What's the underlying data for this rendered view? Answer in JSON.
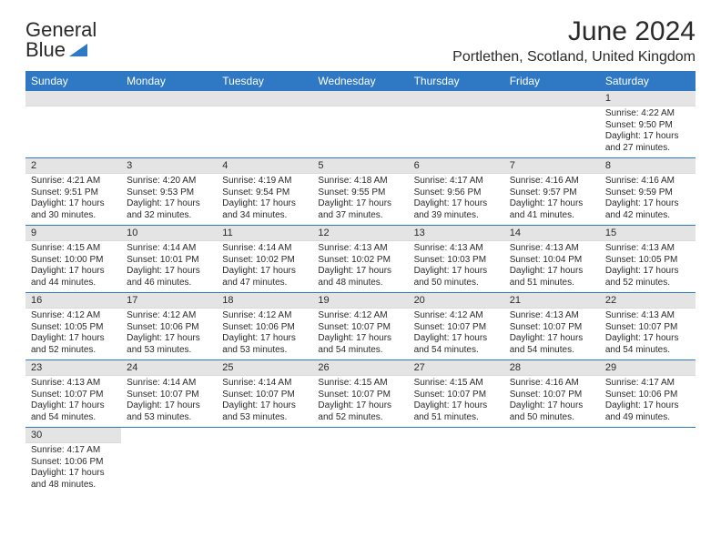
{
  "brand": {
    "name_line1": "General",
    "name_line2": "Blue",
    "triangle_color": "#2f78c4"
  },
  "header": {
    "title": "June 2024",
    "location": "Portlethen, Scotland, United Kingdom"
  },
  "colors": {
    "header_bg": "#2f78c4",
    "header_fg": "#ffffff",
    "daynum_bg": "#e4e4e4",
    "row_divider": "#2f78c4",
    "text": "#2a2a2a"
  },
  "day_headers": [
    "Sunday",
    "Monday",
    "Tuesday",
    "Wednesday",
    "Thursday",
    "Friday",
    "Saturday"
  ],
  "weeks": [
    [
      null,
      null,
      null,
      null,
      null,
      null,
      {
        "n": "1",
        "sunrise": "Sunrise: 4:22 AM",
        "sunset": "Sunset: 9:50 PM",
        "daylight1": "Daylight: 17 hours",
        "daylight2": "and 27 minutes."
      }
    ],
    [
      {
        "n": "2",
        "sunrise": "Sunrise: 4:21 AM",
        "sunset": "Sunset: 9:51 PM",
        "daylight1": "Daylight: 17 hours",
        "daylight2": "and 30 minutes."
      },
      {
        "n": "3",
        "sunrise": "Sunrise: 4:20 AM",
        "sunset": "Sunset: 9:53 PM",
        "daylight1": "Daylight: 17 hours",
        "daylight2": "and 32 minutes."
      },
      {
        "n": "4",
        "sunrise": "Sunrise: 4:19 AM",
        "sunset": "Sunset: 9:54 PM",
        "daylight1": "Daylight: 17 hours",
        "daylight2": "and 34 minutes."
      },
      {
        "n": "5",
        "sunrise": "Sunrise: 4:18 AM",
        "sunset": "Sunset: 9:55 PM",
        "daylight1": "Daylight: 17 hours",
        "daylight2": "and 37 minutes."
      },
      {
        "n": "6",
        "sunrise": "Sunrise: 4:17 AM",
        "sunset": "Sunset: 9:56 PM",
        "daylight1": "Daylight: 17 hours",
        "daylight2": "and 39 minutes."
      },
      {
        "n": "7",
        "sunrise": "Sunrise: 4:16 AM",
        "sunset": "Sunset: 9:57 PM",
        "daylight1": "Daylight: 17 hours",
        "daylight2": "and 41 minutes."
      },
      {
        "n": "8",
        "sunrise": "Sunrise: 4:16 AM",
        "sunset": "Sunset: 9:59 PM",
        "daylight1": "Daylight: 17 hours",
        "daylight2": "and 42 minutes."
      }
    ],
    [
      {
        "n": "9",
        "sunrise": "Sunrise: 4:15 AM",
        "sunset": "Sunset: 10:00 PM",
        "daylight1": "Daylight: 17 hours",
        "daylight2": "and 44 minutes."
      },
      {
        "n": "10",
        "sunrise": "Sunrise: 4:14 AM",
        "sunset": "Sunset: 10:01 PM",
        "daylight1": "Daylight: 17 hours",
        "daylight2": "and 46 minutes."
      },
      {
        "n": "11",
        "sunrise": "Sunrise: 4:14 AM",
        "sunset": "Sunset: 10:02 PM",
        "daylight1": "Daylight: 17 hours",
        "daylight2": "and 47 minutes."
      },
      {
        "n": "12",
        "sunrise": "Sunrise: 4:13 AM",
        "sunset": "Sunset: 10:02 PM",
        "daylight1": "Daylight: 17 hours",
        "daylight2": "and 48 minutes."
      },
      {
        "n": "13",
        "sunrise": "Sunrise: 4:13 AM",
        "sunset": "Sunset: 10:03 PM",
        "daylight1": "Daylight: 17 hours",
        "daylight2": "and 50 minutes."
      },
      {
        "n": "14",
        "sunrise": "Sunrise: 4:13 AM",
        "sunset": "Sunset: 10:04 PM",
        "daylight1": "Daylight: 17 hours",
        "daylight2": "and 51 minutes."
      },
      {
        "n": "15",
        "sunrise": "Sunrise: 4:13 AM",
        "sunset": "Sunset: 10:05 PM",
        "daylight1": "Daylight: 17 hours",
        "daylight2": "and 52 minutes."
      }
    ],
    [
      {
        "n": "16",
        "sunrise": "Sunrise: 4:12 AM",
        "sunset": "Sunset: 10:05 PM",
        "daylight1": "Daylight: 17 hours",
        "daylight2": "and 52 minutes."
      },
      {
        "n": "17",
        "sunrise": "Sunrise: 4:12 AM",
        "sunset": "Sunset: 10:06 PM",
        "daylight1": "Daylight: 17 hours",
        "daylight2": "and 53 minutes."
      },
      {
        "n": "18",
        "sunrise": "Sunrise: 4:12 AM",
        "sunset": "Sunset: 10:06 PM",
        "daylight1": "Daylight: 17 hours",
        "daylight2": "and 53 minutes."
      },
      {
        "n": "19",
        "sunrise": "Sunrise: 4:12 AM",
        "sunset": "Sunset: 10:07 PM",
        "daylight1": "Daylight: 17 hours",
        "daylight2": "and 54 minutes."
      },
      {
        "n": "20",
        "sunrise": "Sunrise: 4:12 AM",
        "sunset": "Sunset: 10:07 PM",
        "daylight1": "Daylight: 17 hours",
        "daylight2": "and 54 minutes."
      },
      {
        "n": "21",
        "sunrise": "Sunrise: 4:13 AM",
        "sunset": "Sunset: 10:07 PM",
        "daylight1": "Daylight: 17 hours",
        "daylight2": "and 54 minutes."
      },
      {
        "n": "22",
        "sunrise": "Sunrise: 4:13 AM",
        "sunset": "Sunset: 10:07 PM",
        "daylight1": "Daylight: 17 hours",
        "daylight2": "and 54 minutes."
      }
    ],
    [
      {
        "n": "23",
        "sunrise": "Sunrise: 4:13 AM",
        "sunset": "Sunset: 10:07 PM",
        "daylight1": "Daylight: 17 hours",
        "daylight2": "and 54 minutes."
      },
      {
        "n": "24",
        "sunrise": "Sunrise: 4:14 AM",
        "sunset": "Sunset: 10:07 PM",
        "daylight1": "Daylight: 17 hours",
        "daylight2": "and 53 minutes."
      },
      {
        "n": "25",
        "sunrise": "Sunrise: 4:14 AM",
        "sunset": "Sunset: 10:07 PM",
        "daylight1": "Daylight: 17 hours",
        "daylight2": "and 53 minutes."
      },
      {
        "n": "26",
        "sunrise": "Sunrise: 4:15 AM",
        "sunset": "Sunset: 10:07 PM",
        "daylight1": "Daylight: 17 hours",
        "daylight2": "and 52 minutes."
      },
      {
        "n": "27",
        "sunrise": "Sunrise: 4:15 AM",
        "sunset": "Sunset: 10:07 PM",
        "daylight1": "Daylight: 17 hours",
        "daylight2": "and 51 minutes."
      },
      {
        "n": "28",
        "sunrise": "Sunrise: 4:16 AM",
        "sunset": "Sunset: 10:07 PM",
        "daylight1": "Daylight: 17 hours",
        "daylight2": "and 50 minutes."
      },
      {
        "n": "29",
        "sunrise": "Sunrise: 4:17 AM",
        "sunset": "Sunset: 10:06 PM",
        "daylight1": "Daylight: 17 hours",
        "daylight2": "and 49 minutes."
      }
    ],
    [
      {
        "n": "30",
        "sunrise": "Sunrise: 4:17 AM",
        "sunset": "Sunset: 10:06 PM",
        "daylight1": "Daylight: 17 hours",
        "daylight2": "and 48 minutes."
      },
      null,
      null,
      null,
      null,
      null,
      null
    ]
  ]
}
